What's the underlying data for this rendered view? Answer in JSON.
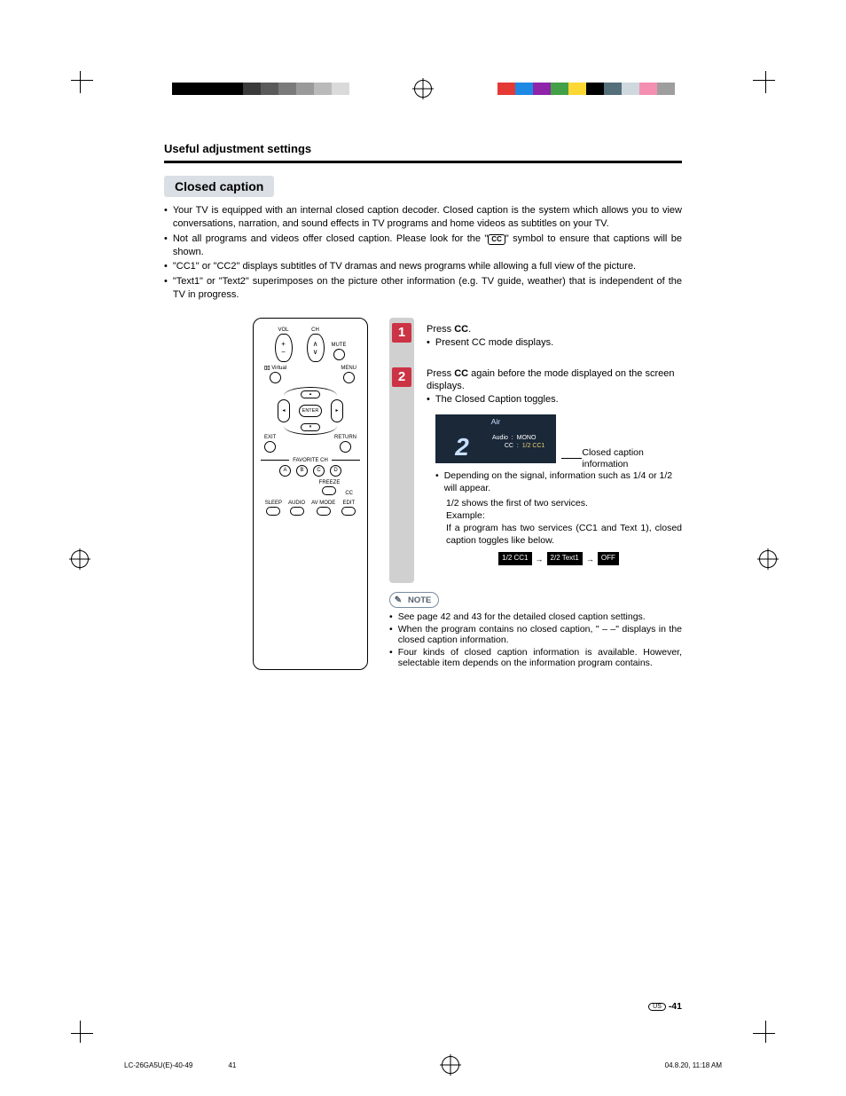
{
  "colorbars": {
    "left": [
      "#000000",
      "#000000",
      "#000000",
      "#000000",
      "#3a3a3a",
      "#5a5a5a",
      "#7a7a7a",
      "#9a9a9a",
      "#bababa",
      "#dadada"
    ],
    "right": [
      "#e53935",
      "#1e88e5",
      "#8e24aa",
      "#43a047",
      "#fdd835",
      "#000000",
      "#546e7a",
      "#cfd8dc",
      "#f48fb1",
      "#9e9e9e"
    ]
  },
  "header": "Useful adjustment settings",
  "section_title": "Closed caption",
  "intro": [
    "Your TV is equipped with an internal closed caption decoder. Closed caption is the system which allows you to view conversations, narration, and sound effects in TV programs and home videos as subtitles on your TV.",
    "Not all programs and videos offer closed caption. Please look for the \"[CC]\" symbol to ensure that captions will be shown.",
    "\"CC1\" or \"CC2\" displays subtitles of TV dramas and news programs while allowing a full view of the picture.",
    "\"Text1\" or \"Text2\" superimposes on the picture other information (e.g. TV guide, weather) that is independent of the TV in progress."
  ],
  "remote": {
    "vol": "VOL",
    "ch": "CH",
    "mute": "MUTE",
    "virtual": "Virtual",
    "menu": "MENU",
    "enter": "ENTER",
    "exit": "EXIT",
    "return": "RETURN",
    "fav": "FAVORITE CH",
    "a": "A",
    "b": "B",
    "c": "C",
    "d": "D",
    "freeze": "FREEZE",
    "cc": "CC",
    "sleep": "SLEEP",
    "audio": "AUDIO",
    "avmode": "AV MODE",
    "edit": "EDIT"
  },
  "steps": {
    "s1": {
      "num": "1",
      "line_pre": "Press ",
      "line_bold": "CC",
      "line_post": ".",
      "sub": "Present CC mode displays."
    },
    "s2": {
      "num": "2",
      "line_pre": "Press ",
      "line_bold": "CC",
      "line_post": " again before the mode displayed on the screen displays.",
      "sub": "The Closed Caption toggles.",
      "osd": {
        "title": "Air",
        "big": "2",
        "audio_label": "Audio",
        "audio_val": "MONO",
        "cc_label": "CC",
        "cc_val": "1/2 CC1"
      },
      "callout": "Closed caption information",
      "bullet1": "Depending on the signal, information such as 1/4 or 1/2 will appear.",
      "line2": "1/2 shows the first of two services.",
      "line3": "Example:",
      "line4": "If a program has two services (CC1 and Text 1), closed caption toggles like below.",
      "seq": [
        "1/2 CC1",
        "→",
        "2/2 Text1",
        "→",
        "OFF"
      ]
    }
  },
  "note_label": "NOTE",
  "notes": [
    "See page 42 and 43 for the detailed closed caption settings.",
    "When the program contains no closed caption, \" – –\" displays in the closed caption information.",
    "Four kinds of closed caption information is available. However, selectable item depends on the information program contains."
  ],
  "page_number_prefix": "US",
  "page_number": "-41",
  "footer": {
    "file": "LC-26GA5U(E)-40-49",
    "page": "41",
    "stamp": "04.8.20, 11:18 AM"
  }
}
